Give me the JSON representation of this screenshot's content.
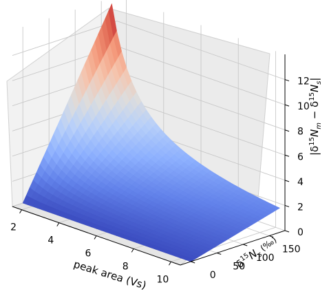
{
  "chart_data": {
    "type": "surface3d",
    "colormap": "coolwarm",
    "grid": true,
    "x": {
      "label": "peak area (Vs)",
      "range": [
        1.5,
        10.5
      ],
      "ticks": [
        2,
        4,
        6,
        8,
        10
      ],
      "tick_labels": [
        "2",
        "4",
        "6",
        "8",
        "10"
      ]
    },
    "y": {
      "label_parts": [
        "δ",
        "15",
        "N",
        "s",
        " (‰)"
      ],
      "range": [
        -20,
        180
      ],
      "ticks": [
        0,
        50,
        100,
        150
      ],
      "tick_labels": [
        "0",
        "50",
        "100",
        "150"
      ]
    },
    "z": {
      "label_parts": [
        "|δ",
        "15",
        "N",
        "m",
        " − δ",
        "15",
        "N",
        "s",
        "|"
      ],
      "range": [
        0,
        14
      ],
      "ticks": [
        0,
        2,
        4,
        6,
        8,
        10,
        12
      ],
      "tick_labels": [
        "0",
        "2",
        "4",
        "6",
        "8",
        "10",
        "12"
      ]
    },
    "surface": {
      "x_range": [
        1.5,
        10.5
      ],
      "y_range": [
        0,
        170
      ],
      "samples": [
        {
          "x": 1.5,
          "y": 170,
          "z": 13.5
        },
        {
          "x": 1.5,
          "y": 0,
          "z": 0.2
        },
        {
          "x": 10.5,
          "y": 170,
          "z": 1.0
        },
        {
          "x": 10.5,
          "y": 0,
          "z": 0.05
        }
      ],
      "note_formula": "z = a * y / x"
    }
  }
}
